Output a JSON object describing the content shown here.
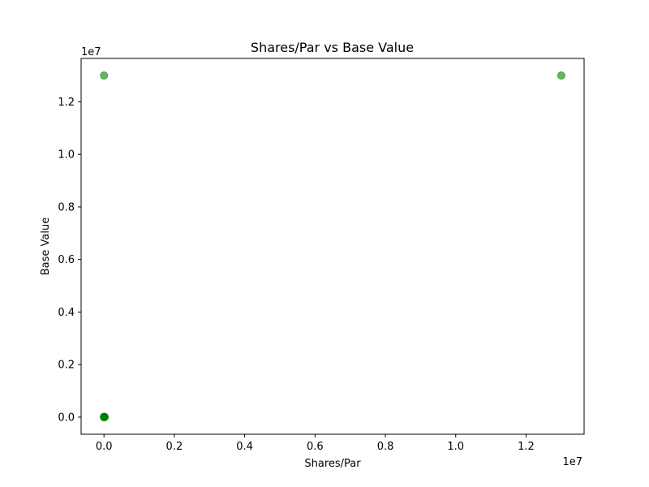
{
  "chart_data": {
    "type": "scatter",
    "title": "Shares/Par vs Base Value",
    "xlabel": "Shares/Par",
    "ylabel": "Base Value",
    "x_offset_label": "1e7",
    "y_offset_label": "1e7",
    "xlim": [
      -650000,
      13650000
    ],
    "ylim": [
      -650000,
      13650000
    ],
    "x_ticks": [
      0,
      2000000,
      4000000,
      6000000,
      8000000,
      10000000,
      12000000
    ],
    "x_tick_labels": [
      "0.0",
      "0.2",
      "0.4",
      "0.6",
      "0.8",
      "1.0",
      "1.2"
    ],
    "y_ticks": [
      0,
      2000000,
      4000000,
      6000000,
      8000000,
      10000000,
      12000000
    ],
    "y_tick_labels": [
      "0.0",
      "0.2",
      "0.4",
      "0.6",
      "0.8",
      "1.0",
      "1.2"
    ],
    "grid": false,
    "color": "#008000",
    "points": [
      {
        "x": 0,
        "y": 13000000
      },
      {
        "x": 13000000,
        "y": 13000000
      },
      {
        "x": 0,
        "y": 0
      },
      {
        "x": 5000,
        "y": 2000
      },
      {
        "x": 10000,
        "y": 5000
      },
      {
        "x": 2000,
        "y": 8000
      },
      {
        "x": 15000,
        "y": 12000
      },
      {
        "x": 8000,
        "y": 1000
      },
      {
        "x": 20000,
        "y": 3000
      },
      {
        "x": 1000,
        "y": 15000
      }
    ]
  }
}
